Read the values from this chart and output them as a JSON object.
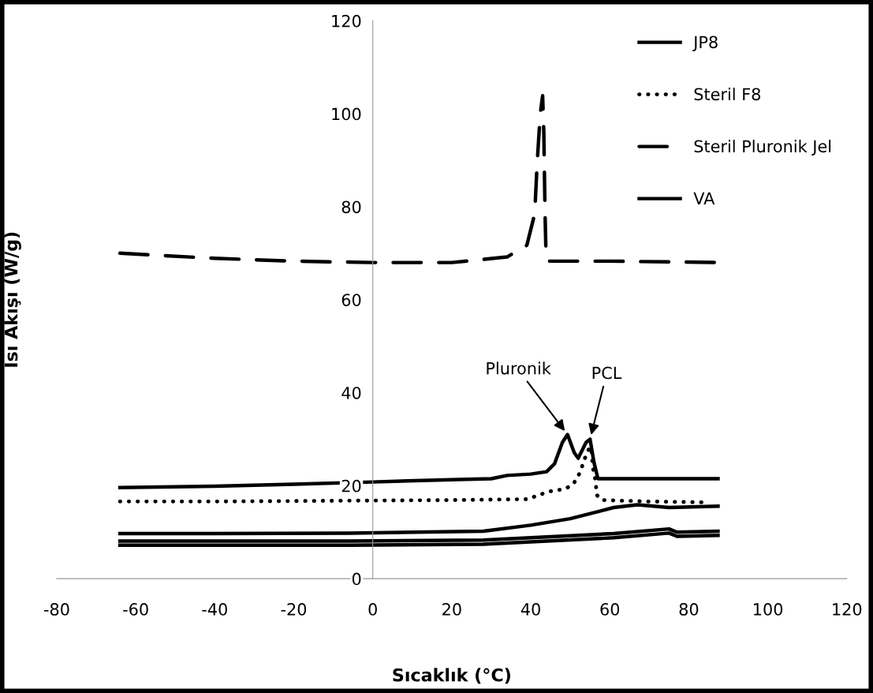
{
  "chart_data": {
    "type": "line",
    "xlabel": "Sıcaklık (°C)",
    "ylabel": "Isı Akışı (W/g)",
    "xlim": [
      -80,
      120
    ],
    "xticks": [
      -80,
      -60,
      -40,
      -20,
      0,
      20,
      40,
      60,
      80,
      100,
      120
    ],
    "ylim": [
      0,
      120
    ],
    "yticks": [
      0,
      20,
      40,
      60,
      80,
      100,
      120
    ],
    "grid": false,
    "legend": "top right",
    "marker": "none",
    "series": [
      {
        "name": "JP8",
        "color": "#000000",
        "line_style": "solid",
        "x": [
          -64,
          -40,
          -20,
          0,
          20,
          30,
          34,
          40,
          44,
          46,
          48,
          49.3,
          51,
          52,
          54,
          55,
          56,
          57,
          60,
          70,
          87.4
        ],
        "values": [
          19.6,
          19.9,
          20.3,
          20.8,
          21.3,
          21.5,
          22.2,
          22.5,
          23.0,
          24.7,
          29.3,
          31.0,
          27.1,
          25.9,
          29.3,
          30.0,
          25.0,
          21.5,
          21.5,
          21.5,
          21.5
        ]
      },
      {
        "name": "Steril F8",
        "color": "#000000",
        "line_style": "dotted",
        "x": [
          -64,
          -40,
          -20,
          0,
          20,
          30,
          39.3,
          42,
          45,
          48.7,
          50.7,
          52,
          53,
          53.7,
          54.7,
          55.3,
          55.7,
          56.2,
          56.5,
          56.7,
          58,
          70,
          85.3
        ],
        "values": [
          16.6,
          16.6,
          16.7,
          16.8,
          16.9,
          17.0,
          17.1,
          18.0,
          18.8,
          19.3,
          20.3,
          22.0,
          24.2,
          25.9,
          27.9,
          28.3,
          23.9,
          22.0,
          20.0,
          18.0,
          16.9,
          16.6,
          16.4
        ]
      },
      {
        "name": "Steril Pluronik Jel",
        "color": "#000000",
        "line_style": "dashed",
        "x": [
          -64,
          -40,
          -20,
          0,
          20,
          34,
          39,
          41,
          41.6,
          42.4,
          43,
          43.3,
          43.6,
          43.8,
          44.2,
          46,
          60,
          87.4
        ],
        "values": [
          70.0,
          68.9,
          68.3,
          68.0,
          68.0,
          69.2,
          71.7,
          78.5,
          89.2,
          100.0,
          103.9,
          95.9,
          79.0,
          71.7,
          68.3,
          68.3,
          68.3,
          68.0
        ]
      },
      {
        "name": "VA",
        "color": "#000000",
        "line_style": "solid",
        "x": [
          -64,
          -40,
          -6,
          28,
          40,
          50,
          61,
          67,
          75,
          87.4
        ],
        "values": [
          9.7,
          9.7,
          9.8,
          10.2,
          11.5,
          12.9,
          15.3,
          15.9,
          15.3,
          15.6
        ]
      },
      {
        "color": "#000000",
        "line_style": "solid",
        "x": [
          -64,
          -38,
          -6,
          28,
          61,
          75,
          77,
          87.4
        ],
        "values": [
          8.1,
          8.1,
          8.1,
          8.3,
          9.7,
          10.7,
          10.0,
          10.2
        ]
      },
      {
        "color": "#000000",
        "line_style": "solid",
        "x": [
          -64,
          -38,
          -6,
          28,
          61,
          75,
          77,
          87.4
        ],
        "values": [
          7.2,
          7.2,
          7.2,
          7.4,
          8.8,
          9.8,
          9.1,
          9.3
        ]
      }
    ],
    "annotations": [
      {
        "text": "Pluronik",
        "x": 49.3,
        "y": 31.0
      },
      {
        "text": "PCL",
        "x": 55,
        "y": 30.0
      }
    ]
  }
}
